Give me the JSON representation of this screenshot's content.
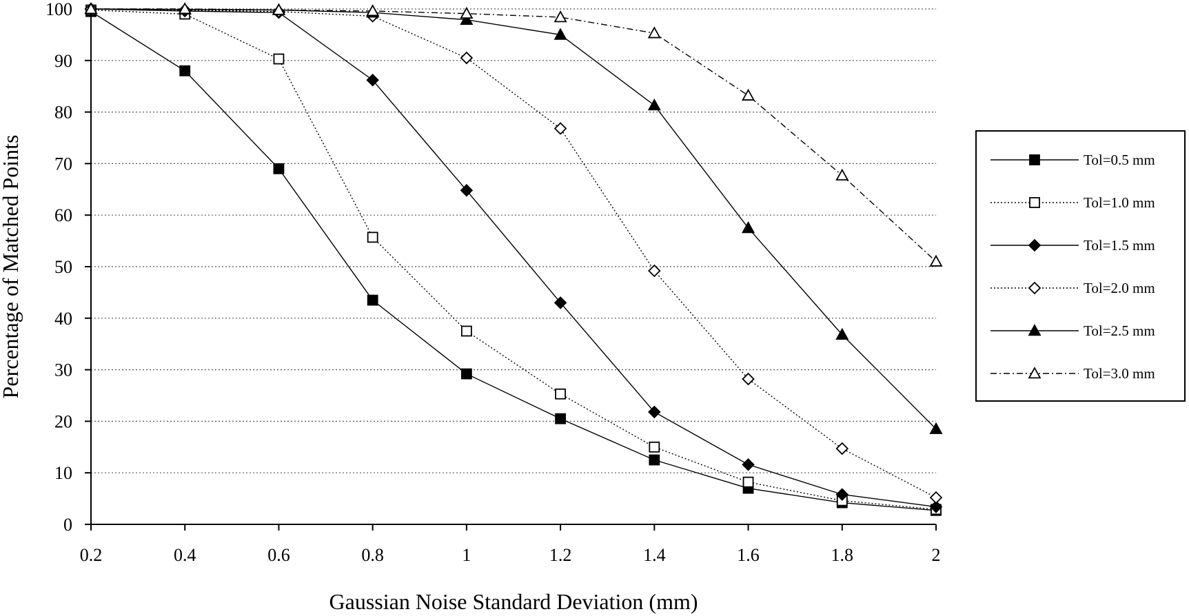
{
  "chart_data": {
    "type": "line",
    "xlabel": "Gaussian Noise Standard Deviation (mm)",
    "ylabel": "Percentage of Matched Points",
    "x": [
      0.2,
      0.4,
      0.6,
      0.8,
      1.0,
      1.2,
      1.4,
      1.6,
      1.8,
      2.0
    ],
    "x_tick_labels": [
      "0.2",
      "0.4",
      "0.6",
      "0.8",
      "1",
      "1.2",
      "1.4",
      "1.6",
      "1.8",
      "2"
    ],
    "y_ticks": [
      0,
      10,
      20,
      30,
      40,
      50,
      60,
      70,
      80,
      90,
      100
    ],
    "y_tick_labels": [
      "0",
      "10",
      "20",
      "30",
      "40",
      "50",
      "60",
      "70",
      "80",
      "90",
      "100"
    ],
    "xlim": [
      0.2,
      2.0
    ],
    "ylim": [
      0,
      100
    ],
    "grid": "horizontal dotted",
    "legend_position": "right",
    "series": [
      {
        "name": "Tol=0.5 mm",
        "marker": "square-filled",
        "dash": "solid",
        "values": [
          99.5,
          88,
          69,
          43.5,
          29.2,
          20.5,
          12.5,
          7,
          4.2,
          2.7
        ]
      },
      {
        "name": "Tol=1.0 mm",
        "marker": "square-open",
        "dash": "dotted",
        "values": [
          99.8,
          99,
          90.3,
          55.7,
          37.5,
          25.3,
          15,
          8.2,
          4.6,
          2.9
        ]
      },
      {
        "name": "Tol=1.5 mm",
        "marker": "diamond-filled",
        "dash": "solid",
        "values": [
          100,
          99.6,
          99.3,
          86.2,
          64.8,
          43,
          21.8,
          11.6,
          5.8,
          3.4
        ]
      },
      {
        "name": "Tol=2.0 mm",
        "marker": "diamond-open",
        "dash": "dotted",
        "values": [
          100,
          99.8,
          99.5,
          98.6,
          90.5,
          76.8,
          49.2,
          28.2,
          14.7,
          5.2
        ]
      },
      {
        "name": "Tol=2.5 mm",
        "marker": "triangle-filled",
        "dash": "solid",
        "values": [
          100,
          99.9,
          99.8,
          99.3,
          97.9,
          95,
          81.3,
          57.5,
          36.8,
          18.5
        ]
      },
      {
        "name": "Tol=3.0 mm",
        "marker": "triangle-open",
        "dash": "dashdot",
        "values": [
          100,
          100,
          99.8,
          99.6,
          99.1,
          98.4,
          95.3,
          83.2,
          67.7,
          51
        ]
      }
    ]
  }
}
